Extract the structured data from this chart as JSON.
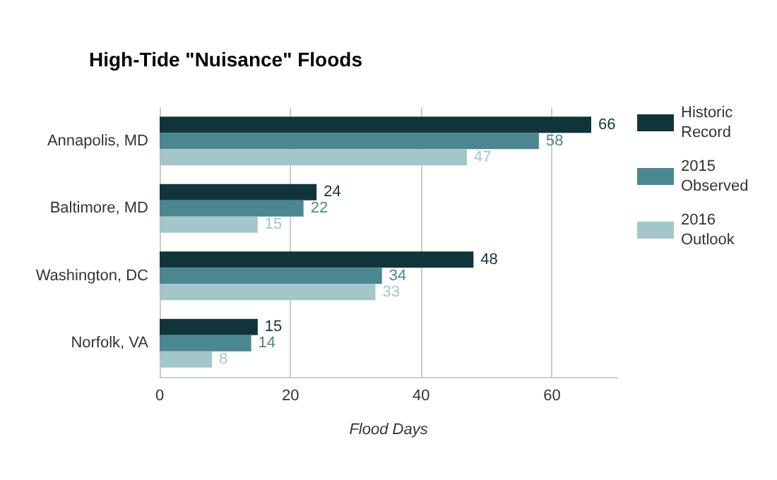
{
  "chart_data": {
    "type": "bar",
    "orientation": "horizontal",
    "title": "High-Tide \"Nuisance\" Floods",
    "xlabel": "Flood Days",
    "categories": [
      "Annapolis, MD",
      "Baltimore, MD",
      "Washington, DC",
      "Norfolk, VA"
    ],
    "series": [
      {
        "name": "Historic Record",
        "color": "#11343b",
        "values": [
          66,
          24,
          48,
          15
        ]
      },
      {
        "name": "2015 Observed",
        "color": "#4a8790",
        "values": [
          58,
          22,
          34,
          14
        ]
      },
      {
        "name": "2016 Outlook",
        "color": "#a3c6cb",
        "values": [
          47,
          15,
          33,
          8
        ]
      }
    ],
    "xlim": [
      0,
      70
    ],
    "xticks": [
      0,
      20,
      40,
      60
    ],
    "grid": "x",
    "legend": "right",
    "data_labels": true
  }
}
